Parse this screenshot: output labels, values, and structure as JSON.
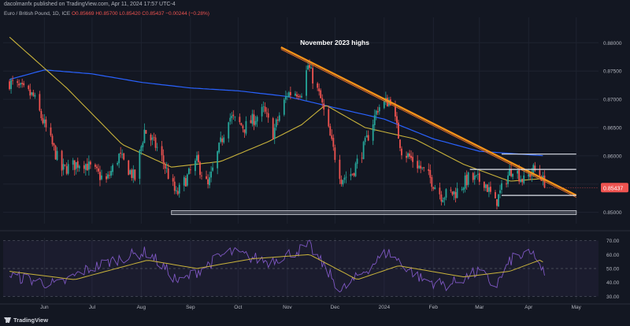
{
  "header": {
    "published": "dacolmanfx published on TradingView.com, Apr 11, 2024 17:57 UTC-4",
    "symbol": "Euro / British Pound, 1D, ICE",
    "ohlc": "O0.85669  H0.85700  L0.85420  C0.85437  −0.00244 (−0.28%)"
  },
  "brand": "TradingView",
  "colors": {
    "background": "#131722",
    "up": "#26a69a",
    "down": "#ef5350",
    "ma_fast": "#c9b33b",
    "ma_slow": "#2962ff",
    "trendline": "#f7931a",
    "rsi": "#7e57c2",
    "rsi_ma": "#c9b33b",
    "price_tag": "#ef5350"
  },
  "chart_data": [
    {
      "type": "candlestick",
      "xlabel": "",
      "ylabel": "",
      "ylim": [
        0.848,
        0.8845
      ],
      "y_ticks": [
        "0.88000",
        "0.87500",
        "0.87000",
        "0.86500",
        "0.86000",
        "0.85500",
        "0.85000"
      ],
      "x_ticks": [
        "Jun",
        "Jul",
        "Aug",
        "Sep",
        "Oct",
        "Nov",
        "Dec",
        "2024",
        "Feb",
        "Mar",
        "Apr",
        "May"
      ],
      "x_tick_dates": [
        "2023-06-01",
        "2023-07-01",
        "2023-08-01",
        "2023-09-01",
        "2023-10-01",
        "2023-11-01",
        "2023-12-01",
        "2024-01-01",
        "2024-02-01",
        "2024-03-01",
        "2024-04-01",
        "2024-05-01"
      ],
      "last_price": "0.85437",
      "grid": true,
      "annotations": [
        {
          "text": "November 2023 highs",
          "date": "2023-11-14",
          "price": 0.8785
        }
      ],
      "trendline": {
        "from": {
          "date": "2023-10-28",
          "price": 0.8792
        },
        "to": {
          "date": "2024-05-01",
          "price": 0.853
        }
      },
      "horizontal_levels": [
        {
          "price": 0.8603,
          "from": "2024-03-15",
          "to": "2024-05-01"
        },
        {
          "price": 0.8576,
          "from": "2024-02-24",
          "to": "2024-05-01"
        },
        {
          "price": 0.853,
          "from": "2024-03-15",
          "to": "2024-05-01"
        }
      ],
      "support_zone": {
        "from_price": 0.8496,
        "to_price": 0.8503,
        "from": "2023-08-20",
        "to": "2024-05-01"
      },
      "ohlc_anchors": [
        {
          "date": "2023-05-10",
          "close": 0.873
        },
        {
          "date": "2023-05-25",
          "close": 0.8705
        },
        {
          "date": "2023-06-12",
          "close": 0.8575
        },
        {
          "date": "2023-06-25",
          "close": 0.859
        },
        {
          "date": "2023-07-10",
          "close": 0.8555
        },
        {
          "date": "2023-07-18",
          "close": 0.86
        },
        {
          "date": "2023-07-28",
          "close": 0.856
        },
        {
          "date": "2023-08-03",
          "close": 0.8645
        },
        {
          "date": "2023-08-12",
          "close": 0.861
        },
        {
          "date": "2023-08-23",
          "close": 0.853
        },
        {
          "date": "2023-09-05",
          "close": 0.859
        },
        {
          "date": "2023-09-12",
          "close": 0.8545
        },
        {
          "date": "2023-09-25",
          "close": 0.867
        },
        {
          "date": "2023-10-05",
          "close": 0.865
        },
        {
          "date": "2023-10-17",
          "close": 0.868
        },
        {
          "date": "2023-10-23",
          "close": 0.864
        },
        {
          "date": "2023-11-01",
          "close": 0.871
        },
        {
          "date": "2023-11-10",
          "close": 0.8715
        },
        {
          "date": "2023-11-14",
          "close": 0.876
        },
        {
          "date": "2023-11-22",
          "close": 0.87
        },
        {
          "date": "2023-11-30",
          "close": 0.861
        },
        {
          "date": "2023-12-05",
          "close": 0.856
        },
        {
          "date": "2023-12-12",
          "close": 0.857
        },
        {
          "date": "2023-12-20",
          "close": 0.862
        },
        {
          "date": "2023-12-28",
          "close": 0.8685
        },
        {
          "date": "2024-01-05",
          "close": 0.87
        },
        {
          "date": "2024-01-12",
          "close": 0.861
        },
        {
          "date": "2024-01-20",
          "close": 0.859
        },
        {
          "date": "2024-01-30",
          "close": 0.856
        },
        {
          "date": "2024-02-06",
          "close": 0.853
        },
        {
          "date": "2024-02-15",
          "close": 0.8535
        },
        {
          "date": "2024-02-23",
          "close": 0.856
        },
        {
          "date": "2024-03-04",
          "close": 0.8555
        },
        {
          "date": "2024-03-11",
          "close": 0.8515
        },
        {
          "date": "2024-03-18",
          "close": 0.856
        },
        {
          "date": "2024-03-22",
          "close": 0.858
        },
        {
          "date": "2024-03-29",
          "close": 0.8555
        },
        {
          "date": "2024-04-04",
          "close": 0.8575
        },
        {
          "date": "2024-04-09",
          "close": 0.8565
        },
        {
          "date": "2024-04-11",
          "close": 0.8544
        }
      ],
      "ma_fast_anchors": [
        {
          "date": "2023-05-10",
          "value": 0.881
        },
        {
          "date": "2023-06-15",
          "value": 0.872
        },
        {
          "date": "2023-07-20",
          "value": 0.862
        },
        {
          "date": "2023-08-20",
          "value": 0.858
        },
        {
          "date": "2023-09-20",
          "value": 0.859
        },
        {
          "date": "2023-10-20",
          "value": 0.8625
        },
        {
          "date": "2023-11-10",
          "value": 0.8655
        },
        {
          "date": "2023-11-25",
          "value": 0.869
        },
        {
          "date": "2023-12-20",
          "value": 0.865
        },
        {
          "date": "2024-01-20",
          "value": 0.863
        },
        {
          "date": "2024-02-20",
          "value": 0.8585
        },
        {
          "date": "2024-03-20",
          "value": 0.8555
        },
        {
          "date": "2024-04-11",
          "value": 0.856
        }
      ],
      "ma_slow_anchors": [
        {
          "date": "2023-05-10",
          "value": 0.8735
        },
        {
          "date": "2023-06-01",
          "value": 0.8752
        },
        {
          "date": "2023-07-01",
          "value": 0.8745
        },
        {
          "date": "2023-08-01",
          "value": 0.873
        },
        {
          "date": "2023-09-01",
          "value": 0.872
        },
        {
          "date": "2023-10-01",
          "value": 0.8715
        },
        {
          "date": "2023-11-01",
          "value": 0.8705
        },
        {
          "date": "2023-12-01",
          "value": 0.8685
        },
        {
          "date": "2024-01-01",
          "value": 0.8665
        },
        {
          "date": "2024-02-01",
          "value": 0.863
        },
        {
          "date": "2024-03-01",
          "value": 0.8608
        },
        {
          "date": "2024-04-11",
          "value": 0.86
        }
      ]
    },
    {
      "type": "line",
      "ylim": [
        28,
        72
      ],
      "y_ticks": [
        "70.00",
        "60.00",
        "50.00",
        "40.00",
        "30.00"
      ],
      "rsi_anchors": [
        {
          "date": "2023-05-10",
          "value": 45
        },
        {
          "date": "2023-06-10",
          "value": 38
        },
        {
          "date": "2023-06-25",
          "value": 48
        },
        {
          "date": "2023-07-20",
          "value": 58
        },
        {
          "date": "2023-08-05",
          "value": 62
        },
        {
          "date": "2023-08-25",
          "value": 40
        },
        {
          "date": "2023-09-25",
          "value": 62
        },
        {
          "date": "2023-10-20",
          "value": 55
        },
        {
          "date": "2023-11-15",
          "value": 66
        },
        {
          "date": "2023-12-05",
          "value": 34
        },
        {
          "date": "2024-01-03",
          "value": 62
        },
        {
          "date": "2024-01-25",
          "value": 42
        },
        {
          "date": "2024-02-10",
          "value": 38
        },
        {
          "date": "2024-03-01",
          "value": 48
        },
        {
          "date": "2024-03-11",
          "value": 37
        },
        {
          "date": "2024-03-22",
          "value": 58
        },
        {
          "date": "2024-04-05",
          "value": 60
        },
        {
          "date": "2024-04-11",
          "value": 45
        }
      ],
      "rsi_ma_anchors": [
        {
          "date": "2023-05-10",
          "value": 48
        },
        {
          "date": "2023-06-20",
          "value": 42
        },
        {
          "date": "2023-08-05",
          "value": 56
        },
        {
          "date": "2023-09-05",
          "value": 50
        },
        {
          "date": "2023-10-10",
          "value": 57
        },
        {
          "date": "2023-11-15",
          "value": 60
        },
        {
          "date": "2023-12-15",
          "value": 42
        },
        {
          "date": "2024-01-10",
          "value": 52
        },
        {
          "date": "2024-02-20",
          "value": 44
        },
        {
          "date": "2024-03-20",
          "value": 48
        },
        {
          "date": "2024-04-08",
          "value": 56
        },
        {
          "date": "2024-04-11",
          "value": 54
        }
      ]
    }
  ]
}
